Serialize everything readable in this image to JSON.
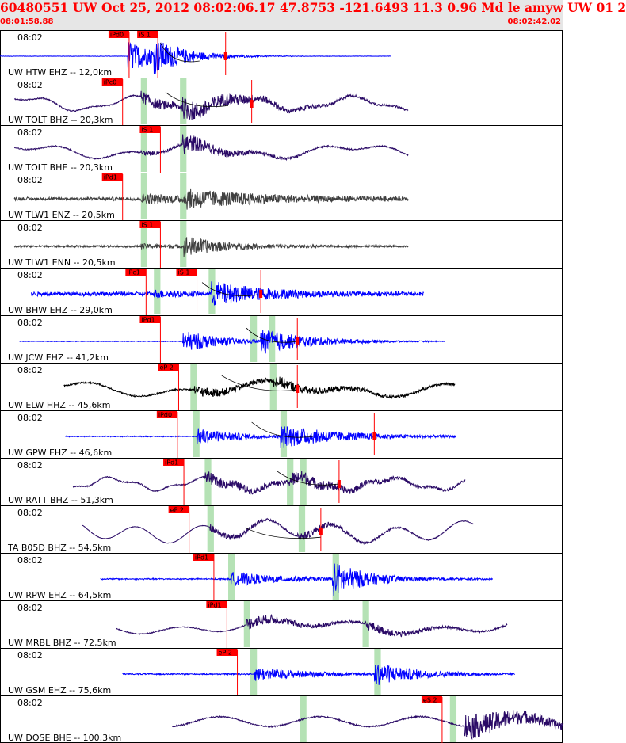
{
  "header": {
    "title": "60480551 UW Oct 25, 2012 08:02:06.17    47.8753 -121.6493 11.3 0.96 Md le amyw UW 01    2",
    "start_time": "08:01:58.88",
    "end_time": "08:02:42.02"
  },
  "chart_data": {
    "type": "line",
    "title": "60480551 UW Oct 25, 2012 08:02:06.17    47.8753 -121.6493 11.3 0.96 Md le amyw UW 01    2",
    "time_range_seconds": [
      0,
      43.14
    ],
    "start_time": "08:01:58.88",
    "end_time": "08:02:42.02",
    "colors": {
      "blue": "#0000ff",
      "navy": "#2a0a66",
      "gray": "#404040",
      "black": "#000000",
      "pick": "#ff0000",
      "window": "#b5e2b5"
    },
    "traces": [
      {
        "name": "UW HTW EHZ -- 12,0km",
        "time_label": "08:02",
        "color": "blue",
        "start": 0.0,
        "end": 30.0,
        "osc": [],
        "noise": 0.05,
        "quiet": 0.0,
        "env": [
          [
            9.8,
            0.85,
            2.5
          ],
          [
            11.8,
            0.6,
            2.5
          ]
        ],
        "windows": [],
        "picks": [
          {
            "label": "iPd0",
            "t": 9.9
          },
          {
            "label": "iS 1",
            "t": 12.1
          }
        ],
        "spikes": [
          17.3
        ],
        "arc": [
          [
            12.3,
            -0.7
          ],
          [
            15.3,
            0.25
          ]
        ]
      },
      {
        "name": "UW TOLT BHZ -- 20,3km",
        "time_label": "08:02",
        "color": "navy",
        "start": 1.1,
        "end": 31.3,
        "osc": [
          [
            0.12,
            3.2,
            0.0
          ],
          [
            0.3,
            1.1,
            1.0
          ]
        ],
        "noise": 0.04,
        "quiet": 0.03,
        "env": [
          [
            10.8,
            0.3,
            5.0
          ],
          [
            14.0,
            0.4,
            5.0
          ]
        ],
        "windows": [
          [
            10.8,
            11.3
          ],
          [
            13.8,
            14.3
          ]
        ],
        "picks": [
          {
            "label": "iPc0",
            "t": 9.4
          }
        ],
        "spikes": [
          19.3
        ],
        "arc": [
          [
            12.7,
            -0.6
          ],
          [
            17.5,
            0.1
          ]
        ]
      },
      {
        "name": "UW TOLT BHE -- 20,3km",
        "time_label": "08:02",
        "color": "navy",
        "start": 1.1,
        "end": 31.3,
        "osc": [
          [
            0.08,
            2.6,
            0.5
          ],
          [
            0.2,
            1.6,
            2.0
          ]
        ],
        "noise": 0.05,
        "quiet": 0.03,
        "env": [
          [
            10.8,
            0.1,
            3.0
          ],
          [
            14.0,
            0.5,
            3.0
          ]
        ],
        "windows": [
          [
            10.8,
            11.3
          ],
          [
            13.8,
            14.3
          ]
        ],
        "picks": [
          {
            "label": "iS 1",
            "t": 12.3
          }
        ],
        "spikes": [],
        "arc": null
      },
      {
        "name": "UW TLW1 ENZ -- 20,5km",
        "time_label": "08:02",
        "color": "gray",
        "start": 1.1,
        "end": 31.3,
        "osc": [],
        "noise": 0.12,
        "quiet": 0.08,
        "env": [
          [
            10.8,
            0.2,
            6.0
          ],
          [
            14.1,
            0.4,
            6.0
          ]
        ],
        "windows": [
          [
            10.8,
            11.3
          ],
          [
            13.8,
            14.3
          ]
        ],
        "picks": [
          {
            "label": "iPd1",
            "t": 9.4
          }
        ],
        "spikes": [],
        "arc": null
      },
      {
        "name": "UW TLW1 ENN -- 20,5km",
        "time_label": "08:02",
        "color": "gray",
        "start": 1.1,
        "end": 31.3,
        "osc": [],
        "noise": 0.05,
        "quiet": 0.05,
        "env": [
          [
            10.8,
            0.1,
            3.0
          ],
          [
            14.1,
            0.5,
            3.0
          ]
        ],
        "windows": [
          [
            10.8,
            11.3
          ],
          [
            13.8,
            14.3
          ]
        ],
        "picks": [
          {
            "label": "iS 1",
            "t": 12.3
          }
        ],
        "spikes": [],
        "arc": null
      },
      {
        "name": "UW BHW EHZ -- 29,0km",
        "time_label": "08:02",
        "color": "blue",
        "start": 2.4,
        "end": 32.5,
        "osc": [],
        "noise": 0.1,
        "quiet": 0.1,
        "env": [
          [
            11.8,
            0.15,
            2.0
          ],
          [
            16.2,
            0.6,
            4.0
          ]
        ],
        "windows": [
          [
            11.8,
            12.3
          ],
          [
            16.0,
            16.5
          ]
        ],
        "picks": [
          {
            "label": "iPc1",
            "t": 11.2
          },
          {
            "label": "iS 1",
            "t": 15.1
          }
        ],
        "spikes": [
          20.0
        ],
        "arc": [
          [
            15.5,
            -0.6
          ],
          [
            19.7,
            0.05
          ]
        ]
      },
      {
        "name": "UW JCW EHZ -- 41,2km",
        "time_label": "08:02",
        "color": "blue",
        "start": 1.5,
        "end": 34.1,
        "osc": [],
        "noise": 0.08,
        "quiet": 0.0,
        "env": [
          [
            14.0,
            0.6,
            3.0
          ],
          [
            20.0,
            0.6,
            4.0
          ]
        ],
        "windows": [
          [
            19.2,
            19.7
          ],
          [
            20.6,
            21.1
          ]
        ],
        "picks": [
          {
            "label": "iPd1",
            "t": 12.3
          }
        ],
        "spikes": [
          22.8
        ],
        "arc": [
          [
            18.9,
            -0.7
          ],
          [
            22.8,
            0.0
          ]
        ]
      },
      {
        "name": "UW ELW HHZ -- 45,6km",
        "time_label": "08:02",
        "color": "black",
        "start": 4.9,
        "end": 34.9,
        "osc": [
          [
            0.06,
            2.5,
            0.0
          ],
          [
            0.15,
            2.0,
            1.2
          ]
        ],
        "noise": 0.05,
        "quiet": 0.04,
        "env": [
          [
            14.9,
            0.25,
            5.0
          ],
          [
            21.0,
            0.2,
            5.0
          ]
        ],
        "windows": [
          [
            14.6,
            15.1
          ],
          [
            20.7,
            21.2
          ]
        ],
        "picks": [
          {
            "label": "eP 2",
            "t": 13.7
          }
        ],
        "spikes": [
          22.8
        ],
        "arc": [
          [
            17.0,
            -0.7
          ],
          [
            22.9,
            0.05
          ]
        ]
      },
      {
        "name": "UW GPW EHZ -- 46,6km",
        "time_label": "08:02",
        "color": "blue",
        "start": 5.0,
        "end": 35.0,
        "osc": [],
        "noise": 0.06,
        "quiet": 0.02,
        "env": [
          [
            15.1,
            0.45,
            3.0
          ],
          [
            21.5,
            0.55,
            5.0
          ]
        ],
        "windows": [
          [
            14.8,
            15.3
          ],
          [
            21.5,
            22.0
          ]
        ],
        "picks": [
          {
            "label": "iPd0",
            "t": 13.6
          }
        ],
        "spikes": [
          28.7
        ],
        "arc": [
          [
            19.3,
            -0.75
          ],
          [
            24.0,
            0.0
          ]
        ]
      },
      {
        "name": "UW RATT BHZ -- 51,3km",
        "time_label": "08:02",
        "color": "navy",
        "start": 5.6,
        "end": 35.7,
        "osc": [
          [
            0.14,
            2.8,
            0.3
          ],
          [
            0.4,
            1.0,
            0.0
          ]
        ],
        "noise": 0.05,
        "quiet": 0.03,
        "env": [
          [
            15.7,
            0.3,
            5.0
          ],
          [
            22.1,
            0.3,
            5.0
          ]
        ],
        "windows": [
          [
            15.7,
            16.2
          ],
          [
            22.0,
            22.5
          ],
          [
            23.0,
            23.5
          ]
        ],
        "picks": [
          {
            "label": "iPd1",
            "t": 14.1
          }
        ],
        "spikes": [
          26.0
        ],
        "arc": [
          [
            21.2,
            -0.7
          ],
          [
            26.0,
            0.0
          ]
        ]
      },
      {
        "name": "TA B05D BHZ -- 54,5km",
        "time_label": "08:02",
        "color": "navy",
        "start": 6.3,
        "end": 36.3,
        "osc": [
          [
            0.06,
            2.1,
            0.0
          ],
          [
            0.2,
            4.0,
            1.0
          ]
        ],
        "noise": 0.02,
        "quiet": 0.01,
        "env": [
          [
            16.1,
            0.2,
            4.0
          ],
          [
            22.8,
            0.2,
            4.0
          ]
        ],
        "windows": [
          [
            15.9,
            16.4
          ],
          [
            22.9,
            23.4
          ]
        ],
        "picks": [
          {
            "label": "eP 2",
            "t": 14.5
          }
        ],
        "spikes": [
          24.6
        ],
        "arc": [
          [
            18.8,
            -0.2
          ],
          [
            24.6,
            0.3
          ]
        ]
      },
      {
        "name": "UW RPW EHZ -- 64,5km",
        "time_label": "08:02",
        "color": "blue",
        "start": 7.7,
        "end": 37.8,
        "osc": [],
        "noise": 0.06,
        "quiet": 0.03,
        "env": [
          [
            17.7,
            0.35,
            4.0
          ],
          [
            25.5,
            0.9,
            2.5
          ]
        ],
        "windows": [
          [
            17.5,
            18.0
          ],
          [
            25.5,
            26.0
          ]
        ],
        "picks": [
          {
            "label": "iPd1",
            "t": 16.4
          }
        ],
        "spikes": [],
        "arc": null
      },
      {
        "name": "UW MRBL BHZ -- 72,5km",
        "time_label": "08:02",
        "color": "navy",
        "start": 8.9,
        "end": 38.9,
        "osc": [
          [
            0.05,
            2.4,
            0.7
          ],
          [
            0.15,
            2.0,
            1.1
          ]
        ],
        "noise": 0.04,
        "quiet": 0.02,
        "env": [
          [
            18.9,
            0.3,
            5.0
          ],
          [
            28.0,
            0.2,
            4.0
          ]
        ],
        "windows": [
          [
            18.7,
            19.2
          ],
          [
            27.8,
            28.3
          ]
        ],
        "picks": [
          {
            "label": "iPd1",
            "t": 17.4
          }
        ],
        "spikes": [],
        "arc": null
      },
      {
        "name": "UW GSM EHZ -- 75,6km",
        "time_label": "08:02",
        "color": "blue",
        "start": 9.4,
        "end": 39.5,
        "osc": [],
        "noise": 0.06,
        "quiet": 0.03,
        "env": [
          [
            19.5,
            0.35,
            4.0
          ],
          [
            28.7,
            0.6,
            3.0
          ]
        ],
        "windows": [
          [
            19.2,
            19.7
          ],
          [
            28.7,
            29.2
          ]
        ],
        "picks": [
          {
            "label": "eP 2",
            "t": 18.2
          }
        ],
        "spikes": [],
        "arc": null
      },
      {
        "name": "UW DOSE BHE -- 100,3km",
        "time_label": "08:02",
        "color": "navy",
        "start": 13.2,
        "end": 43.2,
        "osc": [
          [
            0.13,
            2.6,
            0.4
          ]
        ],
        "noise": 0.06,
        "quiet": 0.03,
        "env": [
          [
            35.6,
            0.7,
            6.0
          ]
        ],
        "windows": [
          [
            23.0,
            23.5
          ],
          [
            34.5,
            35.0
          ]
        ],
        "picks": [
          {
            "label": "eS 2",
            "t": 33.9
          }
        ],
        "spikes": [],
        "arc": null
      }
    ]
  }
}
